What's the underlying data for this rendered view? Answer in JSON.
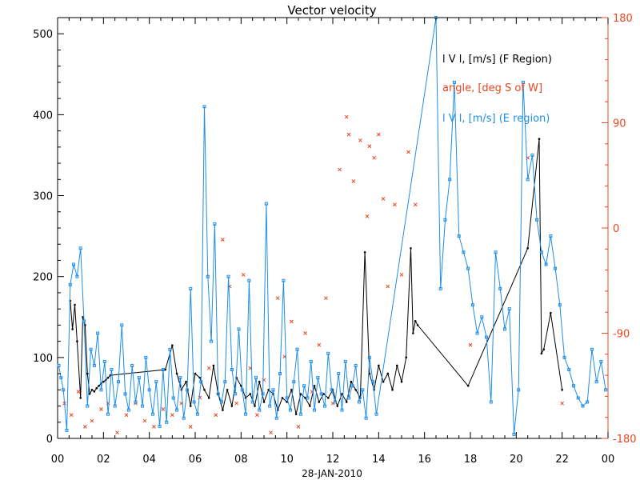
{
  "chart_data": {
    "type": "line",
    "title": "Vector velocity",
    "xlabel": "28-JAN-2010",
    "xlim": [
      0,
      24
    ],
    "x_ticks": [
      "00",
      "02",
      "04",
      "06",
      "08",
      "10",
      "12",
      "14",
      "16",
      "18",
      "20",
      "22",
      "00"
    ],
    "ylim": [
      0,
      520
    ],
    "y_ticks": [
      "0",
      "100",
      "200",
      "300",
      "400",
      "500"
    ],
    "y2lim": [
      -180,
      180
    ],
    "y2_ticks": [
      "-180",
      "-90",
      "0",
      "90",
      "180"
    ],
    "colors": {
      "f_region": "#000000",
      "angle": "#e8461e",
      "e_region": "#1e8ee6",
      "axis_left": "#000000",
      "axis_right": "#e8461e"
    },
    "legend": [
      {
        "label": "l V l, [m/s] (F Region)",
        "color": "#000000"
      },
      {
        "label": "angle, [deg S of W]",
        "color": "#e8461e"
      },
      {
        "label": "l V l, [m/s] (E region)",
        "color": "#1e8ee6"
      }
    ],
    "series": [
      {
        "name": "l V l, [m/s] (F Region)",
        "axis": "left",
        "marker": "dot",
        "x": [
          0.55,
          0.65,
          0.75,
          0.85,
          1.0,
          1.1,
          1.2,
          1.3,
          1.4,
          1.5,
          1.6,
          1.7,
          1.8,
          1.9,
          2.0,
          2.1,
          2.2,
          2.3,
          4.7,
          5.0,
          5.2,
          5.4,
          5.6,
          5.8,
          6.0,
          6.2,
          6.4,
          6.6,
          6.8,
          7.0,
          7.2,
          7.4,
          7.6,
          7.8,
          8.0,
          8.2,
          8.4,
          8.6,
          8.8,
          9.0,
          9.2,
          9.4,
          9.6,
          9.8,
          10.0,
          10.2,
          10.4,
          10.6,
          10.8,
          11.0,
          11.2,
          11.4,
          11.6,
          11.8,
          12.0,
          12.2,
          12.4,
          12.6,
          12.8,
          13.0,
          13.2,
          13.4,
          13.6,
          13.8,
          14.0,
          14.2,
          14.4,
          14.6,
          14.8,
          15.0,
          15.2,
          15.4,
          15.5,
          15.6,
          15.7,
          17.9,
          20.5,
          21.0,
          21.1,
          21.2,
          21.5,
          22.0
        ],
        "values": [
          170,
          135,
          165,
          120,
          50,
          150,
          140,
          80,
          55,
          60,
          58,
          62,
          65,
          68,
          70,
          72,
          75,
          78,
          85,
          115,
          80,
          60,
          70,
          40,
          80,
          75,
          60,
          50,
          90,
          55,
          35,
          60,
          40,
          75,
          65,
          50,
          55,
          40,
          70,
          45,
          60,
          55,
          35,
          50,
          45,
          60,
          30,
          55,
          50,
          40,
          65,
          45,
          55,
          50,
          60,
          40,
          55,
          45,
          70,
          60,
          50,
          230,
          80,
          60,
          90,
          70,
          80,
          60,
          90,
          70,
          100,
          235,
          130,
          145,
          140,
          65,
          235,
          370,
          105,
          110,
          155,
          60
        ]
      },
      {
        "name": "angle, [deg S of W]",
        "axis": "right",
        "marker": "x",
        "x": [
          0.3,
          0.6,
          0.9,
          1.2,
          1.5,
          1.9,
          2.2,
          2.6,
          3.0,
          3.4,
          3.8,
          4.2,
          4.6,
          5.0,
          5.4,
          5.8,
          6.2,
          6.6,
          6.9,
          7.2,
          7.5,
          7.8,
          8.1,
          8.4,
          8.7,
          9.0,
          9.3,
          9.6,
          9.9,
          10.2,
          10.5,
          10.8,
          11.1,
          11.4,
          11.7,
          12.0,
          12.3,
          12.6,
          12.7,
          12.9,
          13.2,
          13.5,
          13.6,
          13.8,
          14.0,
          14.2,
          14.4,
          14.7,
          15.0,
          15.3,
          15.6,
          18.0,
          20.5,
          22.0
        ],
        "values": [
          -150,
          -160,
          -140,
          -170,
          -165,
          -155,
          -150,
          -175,
          -160,
          -150,
          -165,
          -170,
          -155,
          -160,
          -150,
          -170,
          -145,
          -120,
          -160,
          -10,
          -50,
          -150,
          -40,
          -120,
          -160,
          -130,
          -175,
          -60,
          -110,
          -80,
          -170,
          -90,
          -140,
          -100,
          -60,
          -150,
          50,
          95,
          80,
          40,
          75,
          10,
          70,
          60,
          80,
          25,
          -50,
          20,
          -40,
          65,
          20,
          -100,
          60,
          -150
        ]
      },
      {
        "name": "l V l, [m/s] (E region)",
        "axis": "left",
        "marker": "square",
        "x": [
          0.05,
          0.15,
          0.25,
          0.4,
          0.55,
          0.7,
          0.85,
          1.0,
          1.15,
          1.3,
          1.45,
          1.6,
          1.75,
          1.9,
          2.05,
          2.2,
          2.35,
          2.5,
          2.65,
          2.8,
          2.95,
          3.1,
          3.25,
          3.4,
          3.55,
          3.7,
          3.85,
          4.0,
          4.15,
          4.3,
          4.45,
          4.6,
          4.75,
          4.9,
          5.05,
          5.2,
          5.35,
          5.5,
          5.65,
          5.8,
          5.95,
          6.1,
          6.25,
          6.4,
          6.55,
          6.7,
          6.85,
          7.0,
          7.15,
          7.3,
          7.45,
          7.6,
          7.75,
          7.9,
          8.05,
          8.2,
          8.35,
          8.5,
          8.65,
          8.8,
          8.95,
          9.1,
          9.25,
          9.4,
          9.55,
          9.7,
          9.85,
          10.0,
          10.15,
          10.3,
          10.45,
          10.6,
          10.75,
          10.9,
          11.05,
          11.2,
          11.35,
          11.5,
          11.65,
          11.8,
          11.95,
          12.1,
          12.25,
          12.4,
          12.55,
          12.7,
          12.85,
          13.0,
          13.15,
          13.3,
          13.45,
          13.6,
          13.75,
          13.9,
          16.5,
          16.7,
          16.9,
          17.1,
          17.3,
          17.5,
          17.7,
          17.9,
          18.1,
          18.3,
          18.5,
          18.7,
          18.9,
          19.1,
          19.3,
          19.5,
          19.7,
          19.9,
          20.1,
          20.3,
          20.5,
          20.7,
          20.9,
          21.1,
          21.3,
          21.5,
          21.7,
          21.9,
          22.1,
          22.3,
          22.5,
          22.7,
          22.9,
          23.1,
          23.3,
          23.5,
          23.7,
          23.9
        ],
        "values": [
          90,
          75,
          60,
          10,
          190,
          215,
          200,
          235,
          145,
          40,
          110,
          90,
          130,
          60,
          95,
          30,
          85,
          40,
          70,
          140,
          55,
          35,
          90,
          45,
          75,
          40,
          100,
          60,
          30,
          70,
          15,
          85,
          20,
          110,
          50,
          35,
          75,
          25,
          60,
          185,
          45,
          30,
          70,
          410,
          200,
          120,
          265,
          55,
          45,
          70,
          200,
          85,
          55,
          135,
          60,
          30,
          195,
          45,
          75,
          35,
          55,
          290,
          40,
          60,
          25,
          80,
          195,
          50,
          35,
          70,
          110,
          30,
          65,
          50,
          95,
          35,
          75,
          55,
          40,
          105,
          60,
          45,
          80,
          35,
          95,
          50,
          65,
          90,
          45,
          60,
          25,
          100,
          70,
          30,
          520,
          185,
          270,
          320,
          440,
          250,
          230,
          210,
          165,
          130,
          150,
          125,
          45,
          230,
          185,
          135,
          160,
          5,
          60,
          440,
          320,
          350,
          270,
          230,
          215,
          250,
          210,
          165,
          100,
          85,
          65,
          50,
          40,
          45,
          110,
          70,
          95,
          60
        ]
      }
    ],
    "annotations": []
  }
}
